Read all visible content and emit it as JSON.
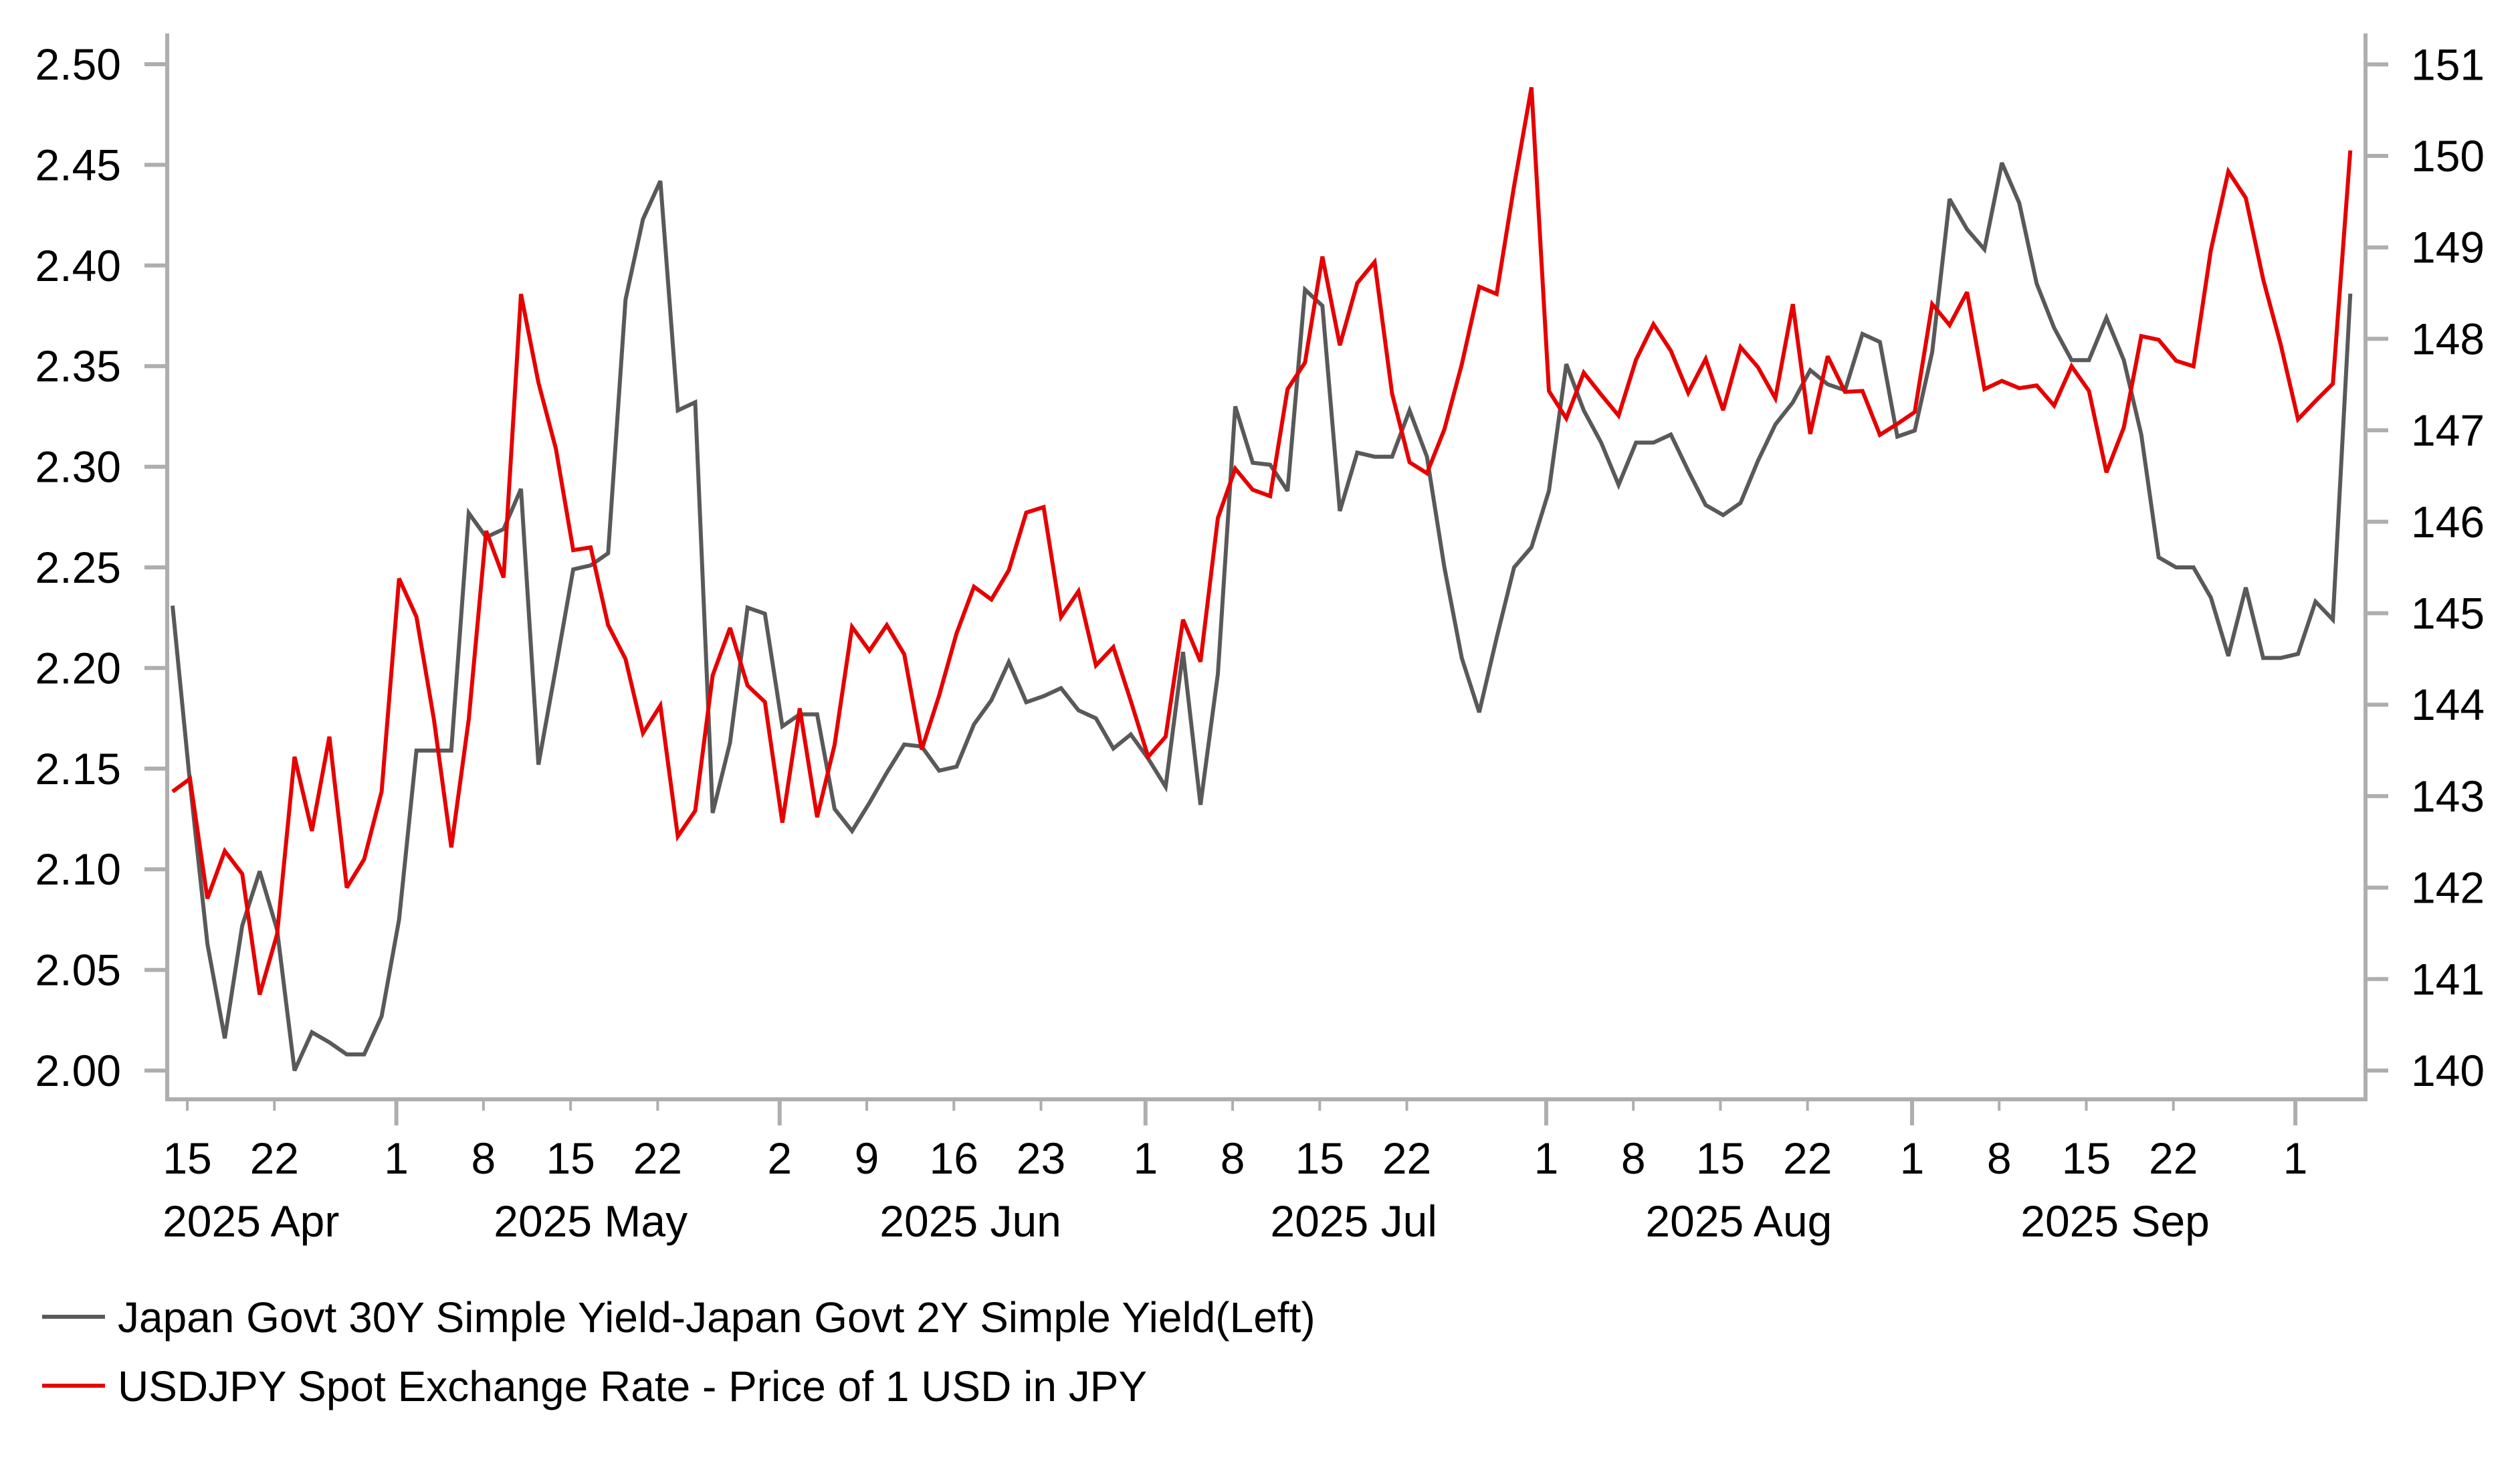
{
  "chart_data": {
    "type": "line",
    "title": "",
    "xlabel": "",
    "ylabel_left": "",
    "ylabel_right": "",
    "x_start": "2025-04-14",
    "x_frequency": "trading days (weekdays)",
    "y_left": {
      "range": [
        1.97,
        2.515
      ],
      "ticks": [
        "2.00",
        "2.05",
        "2.10",
        "2.15",
        "2.20",
        "2.25",
        "2.30",
        "2.35",
        "2.40",
        "2.45",
        "2.50"
      ],
      "tick_values": [
        2.0,
        2.05,
        2.1,
        2.15,
        2.2,
        2.25,
        2.3,
        2.35,
        2.4,
        2.45,
        2.5
      ]
    },
    "y_right": {
      "range": [
        139.7,
        151.4
      ],
      "ticks": [
        "140",
        "141",
        "142",
        "143",
        "144",
        "145",
        "146",
        "147",
        "148",
        "149",
        "150",
        "151"
      ],
      "tick_values": [
        140,
        141,
        142,
        143,
        144,
        145,
        146,
        147,
        148,
        149,
        150,
        151
      ]
    },
    "x_ticks": [
      {
        "label": "15",
        "index": 1,
        "major": false
      },
      {
        "label": "22",
        "index": 6,
        "major": false
      },
      {
        "label": "1",
        "index": 13,
        "major": true
      },
      {
        "label": "8",
        "index": 18,
        "major": false
      },
      {
        "label": "15",
        "index": 23,
        "major": false
      },
      {
        "label": "22",
        "index": 28,
        "major": false
      },
      {
        "label": "2",
        "index": 35,
        "major": true
      },
      {
        "label": "9",
        "index": 40,
        "major": false
      },
      {
        "label": "16",
        "index": 45,
        "major": false
      },
      {
        "label": "23",
        "index": 50,
        "major": false
      },
      {
        "label": "1",
        "index": 56,
        "major": true
      },
      {
        "label": "8",
        "index": 61,
        "major": false
      },
      {
        "label": "15",
        "index": 66,
        "major": false
      },
      {
        "label": "22",
        "index": 71,
        "major": false
      },
      {
        "label": "1",
        "index": 79,
        "major": true
      },
      {
        "label": "8",
        "index": 84,
        "major": false
      },
      {
        "label": "15",
        "index": 89,
        "major": false
      },
      {
        "label": "22",
        "index": 94,
        "major": false
      },
      {
        "label": "1",
        "index": 100,
        "major": true
      },
      {
        "label": "8",
        "index": 105,
        "major": false
      },
      {
        "label": "15",
        "index": 110,
        "major": false
      },
      {
        "label": "22",
        "index": 115,
        "major": false
      },
      {
        "label": "1",
        "index": 122,
        "major": true
      }
    ],
    "month_labels": [
      {
        "label": "2025 Apr",
        "center_index": 4.5
      },
      {
        "label": "2025 May",
        "center_index": 24
      },
      {
        "label": "2025 Jun",
        "center_index": 45.8
      },
      {
        "label": "2025 Jul",
        "center_index": 67.8
      },
      {
        "label": "2025 Aug",
        "center_index": 89.9
      },
      {
        "label": "2025 Sep",
        "center_index": 111.5
      }
    ],
    "series": [
      {
        "name": "Japan Govt 30Y Simple Yield-Japan Govt 2Y Simple Yield(Left)",
        "axis": "left",
        "color": "#595959",
        "values": [
          2.231,
          2.143,
          2.063,
          2.016,
          2.072,
          2.099,
          2.07,
          2.0,
          2.019,
          2.014,
          2.008,
          2.008,
          2.027,
          2.075,
          2.159,
          2.159,
          2.159,
          2.277,
          2.265,
          2.269,
          2.289,
          2.152,
          2.2,
          2.249,
          2.251,
          2.257,
          2.383,
          2.423,
          2.442,
          2.328,
          2.332,
          2.128,
          2.163,
          2.23,
          2.227,
          2.171,
          2.177,
          2.177,
          2.13,
          2.119,
          2.133,
          2.148,
          2.162,
          2.161,
          2.149,
          2.151,
          2.172,
          2.184,
          2.203,
          2.183,
          2.186,
          2.19,
          2.179,
          2.175,
          2.16,
          2.167,
          2.155,
          2.141,
          2.208,
          2.132,
          2.197,
          2.33,
          2.302,
          2.301,
          2.288,
          2.388,
          2.38,
          2.278,
          2.307,
          2.305,
          2.305,
          2.328,
          2.305,
          2.25,
          2.205,
          2.178,
          2.215,
          2.25,
          2.26,
          2.288,
          2.351,
          2.328,
          2.312,
          2.291,
          2.312,
          2.312,
          2.316,
          2.298,
          2.281,
          2.276,
          2.282,
          2.303,
          2.321,
          2.332,
          2.348,
          2.341,
          2.338,
          2.366,
          2.362,
          2.315,
          2.318,
          2.357,
          2.433,
          2.418,
          2.408,
          2.451,
          2.431,
          2.391,
          2.369,
          2.353,
          2.353,
          2.374,
          2.353,
          2.316,
          2.255,
          2.25,
          2.25,
          2.235,
          2.206,
          2.24,
          2.205,
          2.205,
          2.207,
          2.233,
          2.224,
          2.386
        ]
      },
      {
        "name": "USDJPY Spot Exchange Rate - Price of 1 USD in JPY",
        "axis": "right",
        "color": "#E60000",
        "values": [
          143.05,
          143.19,
          141.88,
          142.4,
          142.15,
          140.83,
          141.49,
          143.43,
          142.62,
          143.65,
          142.0,
          142.31,
          143.05,
          145.38,
          144.96,
          143.84,
          142.44,
          143.84,
          145.9,
          145.39,
          148.49,
          147.52,
          146.8,
          145.69,
          145.72,
          144.87,
          144.5,
          143.69,
          143.99,
          142.56,
          142.84,
          144.32,
          144.84,
          144.21,
          144.03,
          142.71,
          143.96,
          142.77,
          143.56,
          144.85,
          144.59,
          144.87,
          144.55,
          143.51,
          144.1,
          144.78,
          145.29,
          145.15,
          145.47,
          146.1,
          146.16,
          144.96,
          145.24,
          144.43,
          144.63,
          144.04,
          143.43,
          143.65,
          144.93,
          144.47,
          146.04,
          146.58,
          146.35,
          146.28,
          147.45,
          147.74,
          148.9,
          147.93,
          148.61,
          148.84,
          147.4,
          146.65,
          146.53,
          147.01,
          147.72,
          148.57,
          148.49,
          149.67,
          150.75,
          147.43,
          147.13,
          147.63,
          147.39,
          147.16,
          147.77,
          148.16,
          147.87,
          147.41,
          147.78,
          147.22,
          147.91,
          147.69,
          147.35,
          148.38,
          146.96,
          147.81,
          147.42,
          147.43,
          146.95,
          147.07,
          147.2,
          148.38,
          148.15,
          148.51,
          147.45,
          147.54,
          147.46,
          147.49,
          147.27,
          147.7,
          147.43,
          146.54,
          147.03,
          148.03,
          147.99,
          147.76,
          147.7,
          148.97,
          149.83,
          149.54,
          148.65,
          147.94,
          147.12,
          147.32,
          147.51,
          150.06
        ]
      }
    ],
    "legend": [
      {
        "label": "Japan Govt 30Y Simple Yield-Japan Govt 2Y Simple Yield(Left)",
        "color": "#595959"
      },
      {
        "label": "USDJPY Spot Exchange Rate - Price of 1 USD in JPY",
        "color": "#E60000"
      }
    ],
    "legend_position": "bottom-left",
    "grid": false,
    "axis_color": "#AEAEAE"
  }
}
